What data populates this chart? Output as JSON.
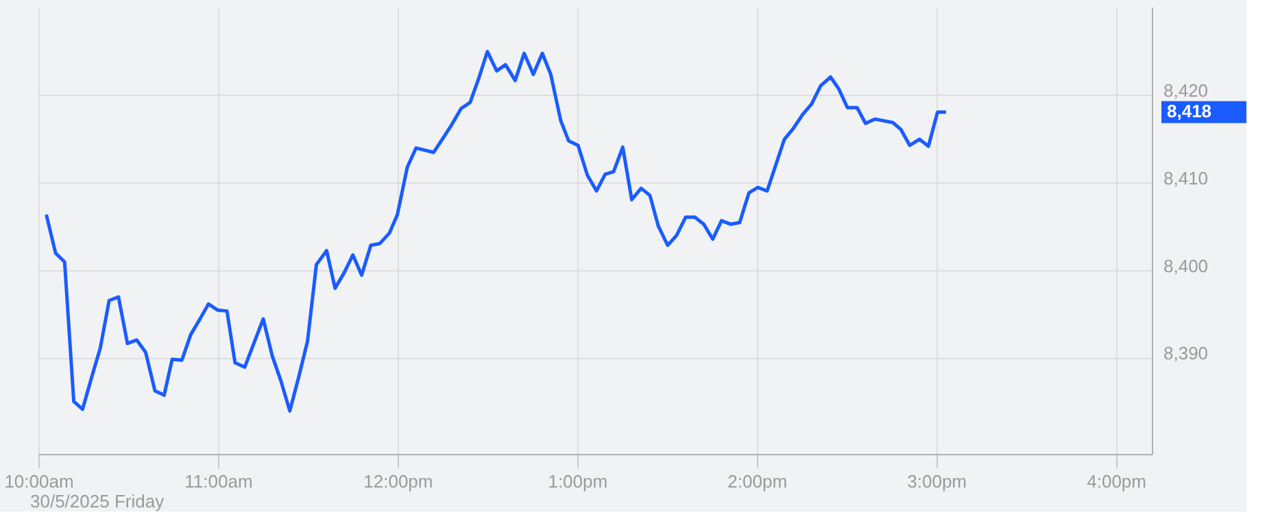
{
  "chart_data": {
    "type": "line",
    "x": [
      10.044,
      10.096,
      10.146,
      10.197,
      10.246,
      10.296,
      10.345,
      10.394,
      10.446,
      10.496,
      10.547,
      10.597,
      10.649,
      10.7,
      10.745,
      10.799,
      10.848,
      10.897,
      10.947,
      10.999,
      11.05,
      11.095,
      11.149,
      11.252,
      11.302,
      11.351,
      11.4,
      11.45,
      11.499,
      11.548,
      11.605,
      11.652,
      11.701,
      11.751,
      11.8,
      11.851,
      11.901,
      11.955,
      11.999,
      12.054,
      12.103,
      12.201,
      12.246,
      12.3,
      12.354,
      12.404,
      12.453,
      12.5,
      12.552,
      12.601,
      12.655,
      12.705,
      12.756,
      12.806,
      12.853,
      12.909,
      12.953,
      13.005,
      13.057,
      13.108,
      13.156,
      13.203,
      13.254,
      13.304,
      13.356,
      13.405,
      13.452,
      13.504,
      13.553,
      13.604,
      13.656,
      13.705,
      13.755,
      13.804,
      13.856,
      13.905,
      13.957,
      14.006,
      14.058,
      14.154,
      14.203,
      14.255,
      14.305,
      14.356,
      14.411,
      14.458,
      14.505,
      14.559,
      14.606,
      14.658,
      14.758,
      14.803,
      14.852,
      14.906,
      14.956,
      15.007,
      15.054
    ],
    "series": [
      {
        "color": "#1a5cff",
        "values": [
          8406.3,
          8401.9,
          8400.9,
          8385.0,
          8384.1,
          8387.7,
          8391.1,
          8396.5,
          8396.9,
          8391.6,
          8392.0,
          8390.6,
          8386.2,
          8385.7,
          8389.8,
          8389.7,
          8392.6,
          8394.3,
          8396.1,
          8395.4,
          8395.3,
          8389.4,
          8388.9,
          8394.4,
          8390.2,
          8387.3,
          8383.9,
          8387.8,
          8391.9,
          8400.6,
          8402.2,
          8397.9,
          8399.6,
          8401.7,
          8399.4,
          8402.8,
          8403.0,
          8404.2,
          8406.3,
          8411.7,
          8413.9,
          8413.4,
          8414.8,
          8416.5,
          8418.4,
          8419.1,
          8421.9,
          8424.9,
          8422.7,
          8423.4,
          8421.6,
          8424.7,
          8422.3,
          8424.7,
          8422.3,
          8417.0,
          8414.7,
          8414.2,
          8410.8,
          8409.0,
          8410.9,
          8411.2,
          8414.0,
          8408.0,
          8409.3,
          8408.5,
          8405.0,
          8402.8,
          8403.9,
          8406.0,
          8406.0,
          8405.2,
          8403.5,
          8405.6,
          8405.2,
          8405.4,
          8408.8,
          8409.4,
          8409.0,
          8414.9,
          8416.1,
          8417.7,
          8418.9,
          8421.0,
          8422.0,
          8420.6,
          8418.5,
          8418.5,
          8416.7,
          8417.2,
          8416.8,
          8416.0,
          8414.2,
          8414.9,
          8414.1,
          8418.0,
          8418.0
        ]
      }
    ],
    "xlim": [
      10,
      16.2
    ],
    "xticks": [
      {
        "value": 10,
        "label": "10:00am"
      },
      {
        "value": 11,
        "label": "11:00am"
      },
      {
        "value": 12,
        "label": "12:00pm"
      },
      {
        "value": 13,
        "label": "1:00pm"
      },
      {
        "value": 14,
        "label": "2:00pm"
      },
      {
        "value": 15,
        "label": "3:00pm"
      },
      {
        "value": 16,
        "label": "4:00pm"
      }
    ],
    "ylim": [
      8379,
      8430
    ],
    "yticks": [
      {
        "value": 8390,
        "label": "8,390"
      },
      {
        "value": 8400,
        "label": "8,400"
      },
      {
        "value": 8410,
        "label": "8,410"
      },
      {
        "value": 8420,
        "label": "8,420"
      }
    ],
    "grid": true,
    "marker": "none",
    "line_style": "solid",
    "annotations": [
      "30/5/2025 Friday",
      "8,418"
    ]
  }
}
